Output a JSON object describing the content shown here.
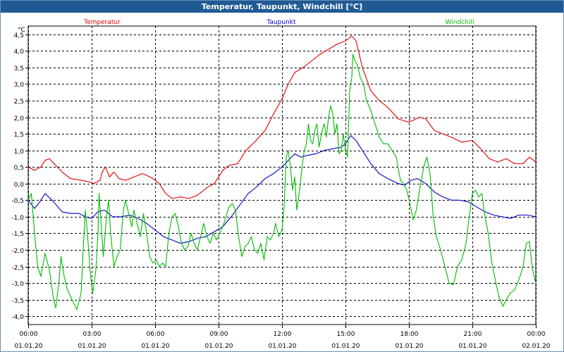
{
  "window": {
    "title": "Temperatur, Taupunkt, Windchill [°C]"
  },
  "chart_data": {
    "type": "line",
    "title": "Temperatur, Taupunkt, Windchill [°C]",
    "ylabel": "°C",
    "ylim": [
      -4.25,
      4.75
    ],
    "yticks": [
      "4,5",
      "4,0",
      "3,5",
      "3,0",
      "2,5",
      "2,0",
      "1,5",
      "1,0",
      "0,5",
      "0,0",
      "-0,5",
      "-1,0",
      "-1,5",
      "-2,0",
      "-2,5",
      "-3,0",
      "-3,5",
      "-4,0"
    ],
    "ytick_values": [
      4.5,
      4.0,
      3.5,
      3.0,
      2.5,
      2.0,
      1.5,
      1.0,
      0.5,
      0.0,
      -0.5,
      -1.0,
      -1.5,
      -2.0,
      -2.5,
      -3.0,
      -3.5,
      -4.0
    ],
    "xlim": [
      0,
      24
    ],
    "xticks": [
      {
        "time": "00:00",
        "date": "01.01.20"
      },
      {
        "time": "03:00",
        "date": "01.01.20"
      },
      {
        "time": "06:00",
        "date": "01.01.20"
      },
      {
        "time": "09:00",
        "date": "01.01.20"
      },
      {
        "time": "12:00",
        "date": "01.01.20"
      },
      {
        "time": "15:00",
        "date": "01.01.20"
      },
      {
        "time": "18:00",
        "date": "01.01.20"
      },
      {
        "time": "21:00",
        "date": "01.01.20"
      },
      {
        "time": "00:00",
        "date": "02.01.20"
      }
    ],
    "grid": true,
    "legend": "top",
    "series": [
      {
        "name": "Temperatur",
        "color": "#dd0000",
        "points": [
          [
            0,
            0.5
          ],
          [
            0.3,
            0.4
          ],
          [
            0.6,
            0.5
          ],
          [
            0.8,
            0.7
          ],
          [
            1.0,
            0.75
          ],
          [
            1.3,
            0.55
          ],
          [
            1.6,
            0.35
          ],
          [
            2.0,
            0.15
          ],
          [
            2.5,
            0.1
          ],
          [
            2.9,
            0.05
          ],
          [
            3.1,
            0.0
          ],
          [
            3.4,
            0.1
          ],
          [
            3.5,
            0.35
          ],
          [
            3.65,
            0.5
          ],
          [
            3.85,
            0.2
          ],
          [
            4.05,
            0.35
          ],
          [
            4.3,
            0.15
          ],
          [
            4.6,
            0.1
          ],
          [
            5.0,
            0.2
          ],
          [
            5.4,
            0.3
          ],
          [
            5.6,
            0.25
          ],
          [
            5.9,
            0.15
          ],
          [
            6.2,
            0.0
          ],
          [
            6.5,
            -0.3
          ],
          [
            6.8,
            -0.45
          ],
          [
            7.2,
            -0.4
          ],
          [
            7.6,
            -0.45
          ],
          [
            8.0,
            -0.35
          ],
          [
            8.5,
            -0.1
          ],
          [
            8.8,
            0.0
          ],
          [
            9.2,
            0.4
          ],
          [
            9.5,
            0.55
          ],
          [
            9.9,
            0.6
          ],
          [
            10.3,
            1.0
          ],
          [
            10.7,
            1.25
          ],
          [
            11.2,
            1.6
          ],
          [
            11.6,
            2.1
          ],
          [
            12.0,
            2.55
          ],
          [
            12.3,
            3.0
          ],
          [
            12.6,
            3.35
          ],
          [
            13.0,
            3.5
          ],
          [
            13.4,
            3.7
          ],
          [
            13.8,
            3.9
          ],
          [
            14.2,
            4.05
          ],
          [
            14.6,
            4.2
          ],
          [
            15.0,
            4.3
          ],
          [
            15.3,
            4.45
          ],
          [
            15.5,
            4.3
          ],
          [
            15.8,
            3.5
          ],
          [
            16.2,
            2.8
          ],
          [
            16.6,
            2.5
          ],
          [
            17.0,
            2.3
          ],
          [
            17.5,
            1.95
          ],
          [
            18.0,
            1.85
          ],
          [
            18.5,
            2.0
          ],
          [
            18.8,
            1.95
          ],
          [
            19.2,
            1.6
          ],
          [
            19.6,
            1.5
          ],
          [
            20.0,
            1.4
          ],
          [
            20.5,
            1.25
          ],
          [
            21.0,
            1.3
          ],
          [
            21.4,
            1.05
          ],
          [
            21.8,
            0.75
          ],
          [
            22.2,
            0.65
          ],
          [
            22.6,
            0.75
          ],
          [
            23.0,
            0.6
          ],
          [
            23.4,
            0.6
          ],
          [
            23.7,
            0.8
          ],
          [
            24.0,
            0.65
          ]
        ]
      },
      {
        "name": "Taupunkt",
        "color": "#0000cc",
        "points": [
          [
            0,
            -0.5
          ],
          [
            0.3,
            -0.75
          ],
          [
            0.55,
            -0.55
          ],
          [
            0.8,
            -0.3
          ],
          [
            1.2,
            -0.55
          ],
          [
            1.6,
            -0.85
          ],
          [
            2.0,
            -0.9
          ],
          [
            2.4,
            -0.9
          ],
          [
            2.7,
            -1.0
          ],
          [
            3.0,
            -1.05
          ],
          [
            3.3,
            -0.85
          ],
          [
            3.6,
            -0.8
          ],
          [
            4.0,
            -1.0
          ],
          [
            4.4,
            -1.0
          ],
          [
            4.8,
            -0.95
          ],
          [
            5.2,
            -1.05
          ],
          [
            5.6,
            -1.2
          ],
          [
            6.0,
            -1.4
          ],
          [
            6.4,
            -1.6
          ],
          [
            6.8,
            -1.7
          ],
          [
            7.2,
            -1.8
          ],
          [
            7.6,
            -1.75
          ],
          [
            8.0,
            -1.65
          ],
          [
            8.4,
            -1.6
          ],
          [
            8.8,
            -1.45
          ],
          [
            9.2,
            -1.3
          ],
          [
            9.6,
            -1.0
          ],
          [
            10.0,
            -0.65
          ],
          [
            10.4,
            -0.3
          ],
          [
            10.8,
            -0.1
          ],
          [
            11.2,
            0.15
          ],
          [
            11.6,
            0.3
          ],
          [
            12.0,
            0.5
          ],
          [
            12.3,
            0.7
          ],
          [
            12.6,
            0.9
          ],
          [
            12.9,
            0.8
          ],
          [
            13.2,
            0.85
          ],
          [
            13.6,
            0.9
          ],
          [
            14.0,
            1.0
          ],
          [
            14.4,
            1.05
          ],
          [
            14.8,
            1.1
          ],
          [
            15.0,
            1.2
          ],
          [
            15.25,
            1.45
          ],
          [
            15.5,
            1.3
          ],
          [
            15.8,
            1.0
          ],
          [
            16.2,
            0.6
          ],
          [
            16.6,
            0.3
          ],
          [
            17.0,
            0.15
          ],
          [
            17.5,
            0.0
          ],
          [
            17.8,
            -0.05
          ],
          [
            18.1,
            0.1
          ],
          [
            18.4,
            0.15
          ],
          [
            18.8,
            0.0
          ],
          [
            19.2,
            -0.25
          ],
          [
            19.6,
            -0.4
          ],
          [
            20.0,
            -0.5
          ],
          [
            20.4,
            -0.5
          ],
          [
            20.8,
            -0.55
          ],
          [
            21.2,
            -0.7
          ],
          [
            21.6,
            -0.85
          ],
          [
            22.0,
            -0.95
          ],
          [
            22.4,
            -1.0
          ],
          [
            22.8,
            -1.05
          ],
          [
            23.2,
            -0.95
          ],
          [
            23.6,
            -0.95
          ],
          [
            24.0,
            -1.0
          ]
        ]
      },
      {
        "name": "Windchill",
        "color": "#00bb00",
        "points": [
          [
            0,
            -0.5
          ],
          [
            0.15,
            -0.3
          ],
          [
            0.3,
            -1.5
          ],
          [
            0.45,
            -2.5
          ],
          [
            0.6,
            -2.8
          ],
          [
            0.8,
            -2.1
          ],
          [
            1.0,
            -2.6
          ],
          [
            1.2,
            -3.5
          ],
          [
            1.3,
            -3.75
          ],
          [
            1.45,
            -3.0
          ],
          [
            1.55,
            -2.2
          ],
          [
            1.7,
            -2.8
          ],
          [
            1.85,
            -3.2
          ],
          [
            2.0,
            -3.4
          ],
          [
            2.3,
            -3.8
          ],
          [
            2.5,
            -3.3
          ],
          [
            2.6,
            -2.0
          ],
          [
            2.7,
            -0.8
          ],
          [
            2.8,
            -1.5
          ],
          [
            2.95,
            -2.8
          ],
          [
            3.05,
            -3.3
          ],
          [
            3.2,
            -2.6
          ],
          [
            3.3,
            -1.5
          ],
          [
            3.35,
            -0.3
          ],
          [
            3.45,
            -1.2
          ],
          [
            3.55,
            -2.2
          ],
          [
            3.7,
            -1.0
          ],
          [
            3.8,
            -0.5
          ],
          [
            3.9,
            -1.5
          ],
          [
            4.05,
            -2.5
          ],
          [
            4.2,
            -2.2
          ],
          [
            4.35,
            -2.0
          ],
          [
            4.5,
            -0.8
          ],
          [
            4.6,
            -0.5
          ],
          [
            4.75,
            -0.9
          ],
          [
            4.9,
            -1.3
          ],
          [
            5.0,
            -0.8
          ],
          [
            5.15,
            -1.2
          ],
          [
            5.3,
            -1.6
          ],
          [
            5.45,
            -0.9
          ],
          [
            5.6,
            -1.5
          ],
          [
            5.75,
            -2.2
          ],
          [
            5.9,
            -2.4
          ],
          [
            6.05,
            -2.3
          ],
          [
            6.2,
            -2.5
          ],
          [
            6.35,
            -2.4
          ],
          [
            6.5,
            -2.5
          ],
          [
            6.65,
            -1.5
          ],
          [
            6.8,
            -1.0
          ],
          [
            6.95,
            -0.9
          ],
          [
            7.1,
            -1.3
          ],
          [
            7.25,
            -1.8
          ],
          [
            7.4,
            -2.0
          ],
          [
            7.55,
            -1.9
          ],
          [
            7.7,
            -1.5
          ],
          [
            7.85,
            -1.8
          ],
          [
            8.0,
            -2.0
          ],
          [
            8.15,
            -1.6
          ],
          [
            8.3,
            -1.2
          ],
          [
            8.45,
            -1.6
          ],
          [
            8.6,
            -1.8
          ],
          [
            8.75,
            -1.5
          ],
          [
            8.9,
            -1.7
          ],
          [
            9.05,
            -1.5
          ],
          [
            9.2,
            -1.3
          ],
          [
            9.35,
            -1.0
          ],
          [
            9.5,
            -0.7
          ],
          [
            9.65,
            -0.6
          ],
          [
            9.8,
            -0.8
          ],
          [
            9.95,
            -1.6
          ],
          [
            10.1,
            -2.2
          ],
          [
            10.25,
            -1.9
          ],
          [
            10.4,
            -1.8
          ],
          [
            10.55,
            -1.6
          ],
          [
            10.7,
            -2.0
          ],
          [
            10.85,
            -2.1
          ],
          [
            11.0,
            -1.8
          ],
          [
            11.15,
            -2.3
          ],
          [
            11.3,
            -1.6
          ],
          [
            11.45,
            -1.7
          ],
          [
            11.6,
            -1.5
          ],
          [
            11.7,
            -1.2
          ],
          [
            11.85,
            -1.6
          ],
          [
            12.0,
            -1.4
          ],
          [
            12.1,
            -0.7
          ],
          [
            12.2,
            0.8
          ],
          [
            12.3,
            1.0
          ],
          [
            12.4,
            0.5
          ],
          [
            12.5,
            -0.2
          ],
          [
            12.6,
            0.2
          ],
          [
            12.7,
            -0.8
          ],
          [
            12.85,
            -0.1
          ],
          [
            12.95,
            0.5
          ],
          [
            13.05,
            1.0
          ],
          [
            13.15,
            1.2
          ],
          [
            13.25,
            1.8
          ],
          [
            13.35,
            1.3
          ],
          [
            13.45,
            1.2
          ],
          [
            13.55,
            1.6
          ],
          [
            13.65,
            1.8
          ],
          [
            13.75,
            1.1
          ],
          [
            13.9,
            1.6
          ],
          [
            14.0,
            1.8
          ],
          [
            14.1,
            1.4
          ],
          [
            14.2,
            2.0
          ],
          [
            14.3,
            2.35
          ],
          [
            14.4,
            2.1
          ],
          [
            14.5,
            1.5
          ],
          [
            14.6,
            1.8
          ],
          [
            14.7,
            0.9
          ],
          [
            14.8,
            1.0
          ],
          [
            14.9,
            1.5
          ],
          [
            15.0,
            1.0
          ],
          [
            15.1,
            0.8
          ],
          [
            15.2,
            2.8
          ],
          [
            15.3,
            3.2
          ],
          [
            15.35,
            3.9
          ],
          [
            15.45,
            3.7
          ],
          [
            15.55,
            3.6
          ],
          [
            15.7,
            3.2
          ],
          [
            15.85,
            3.0
          ],
          [
            16.0,
            2.5
          ],
          [
            16.2,
            2.2
          ],
          [
            16.4,
            1.8
          ],
          [
            16.6,
            1.4
          ],
          [
            16.8,
            1.2
          ],
          [
            17.0,
            1.2
          ],
          [
            17.2,
            1.0
          ],
          [
            17.4,
            0.8
          ],
          [
            17.6,
            0.1
          ],
          [
            17.75,
            0.0
          ],
          [
            17.9,
            -0.2
          ],
          [
            18.05,
            -0.6
          ],
          [
            18.2,
            -1.1
          ],
          [
            18.35,
            -0.8
          ],
          [
            18.5,
            -0.2
          ],
          [
            18.7,
            0.5
          ],
          [
            18.85,
            0.8
          ],
          [
            19.0,
            0.3
          ],
          [
            19.15,
            -1.0
          ],
          [
            19.3,
            -1.6
          ],
          [
            19.5,
            -2.0
          ],
          [
            19.7,
            -2.5
          ],
          [
            19.9,
            -3.0
          ],
          [
            20.1,
            -3.05
          ],
          [
            20.3,
            -2.5
          ],
          [
            20.5,
            -2.3
          ],
          [
            20.7,
            -1.8
          ],
          [
            20.85,
            -1.0
          ],
          [
            21.0,
            -0.3
          ],
          [
            21.15,
            -0.2
          ],
          [
            21.3,
            -0.4
          ],
          [
            21.45,
            -0.3
          ],
          [
            21.6,
            -1.0
          ],
          [
            21.75,
            -1.5
          ],
          [
            21.9,
            -2.3
          ],
          [
            22.05,
            -2.8
          ],
          [
            22.25,
            -3.4
          ],
          [
            22.45,
            -3.7
          ],
          [
            22.6,
            -3.5
          ],
          [
            22.8,
            -3.3
          ],
          [
            23.0,
            -3.2
          ],
          [
            23.2,
            -2.9
          ],
          [
            23.4,
            -2.5
          ],
          [
            23.55,
            -1.8
          ],
          [
            23.7,
            -1.75
          ],
          [
            23.85,
            -2.6
          ],
          [
            24.0,
            -3.0
          ]
        ]
      }
    ]
  }
}
